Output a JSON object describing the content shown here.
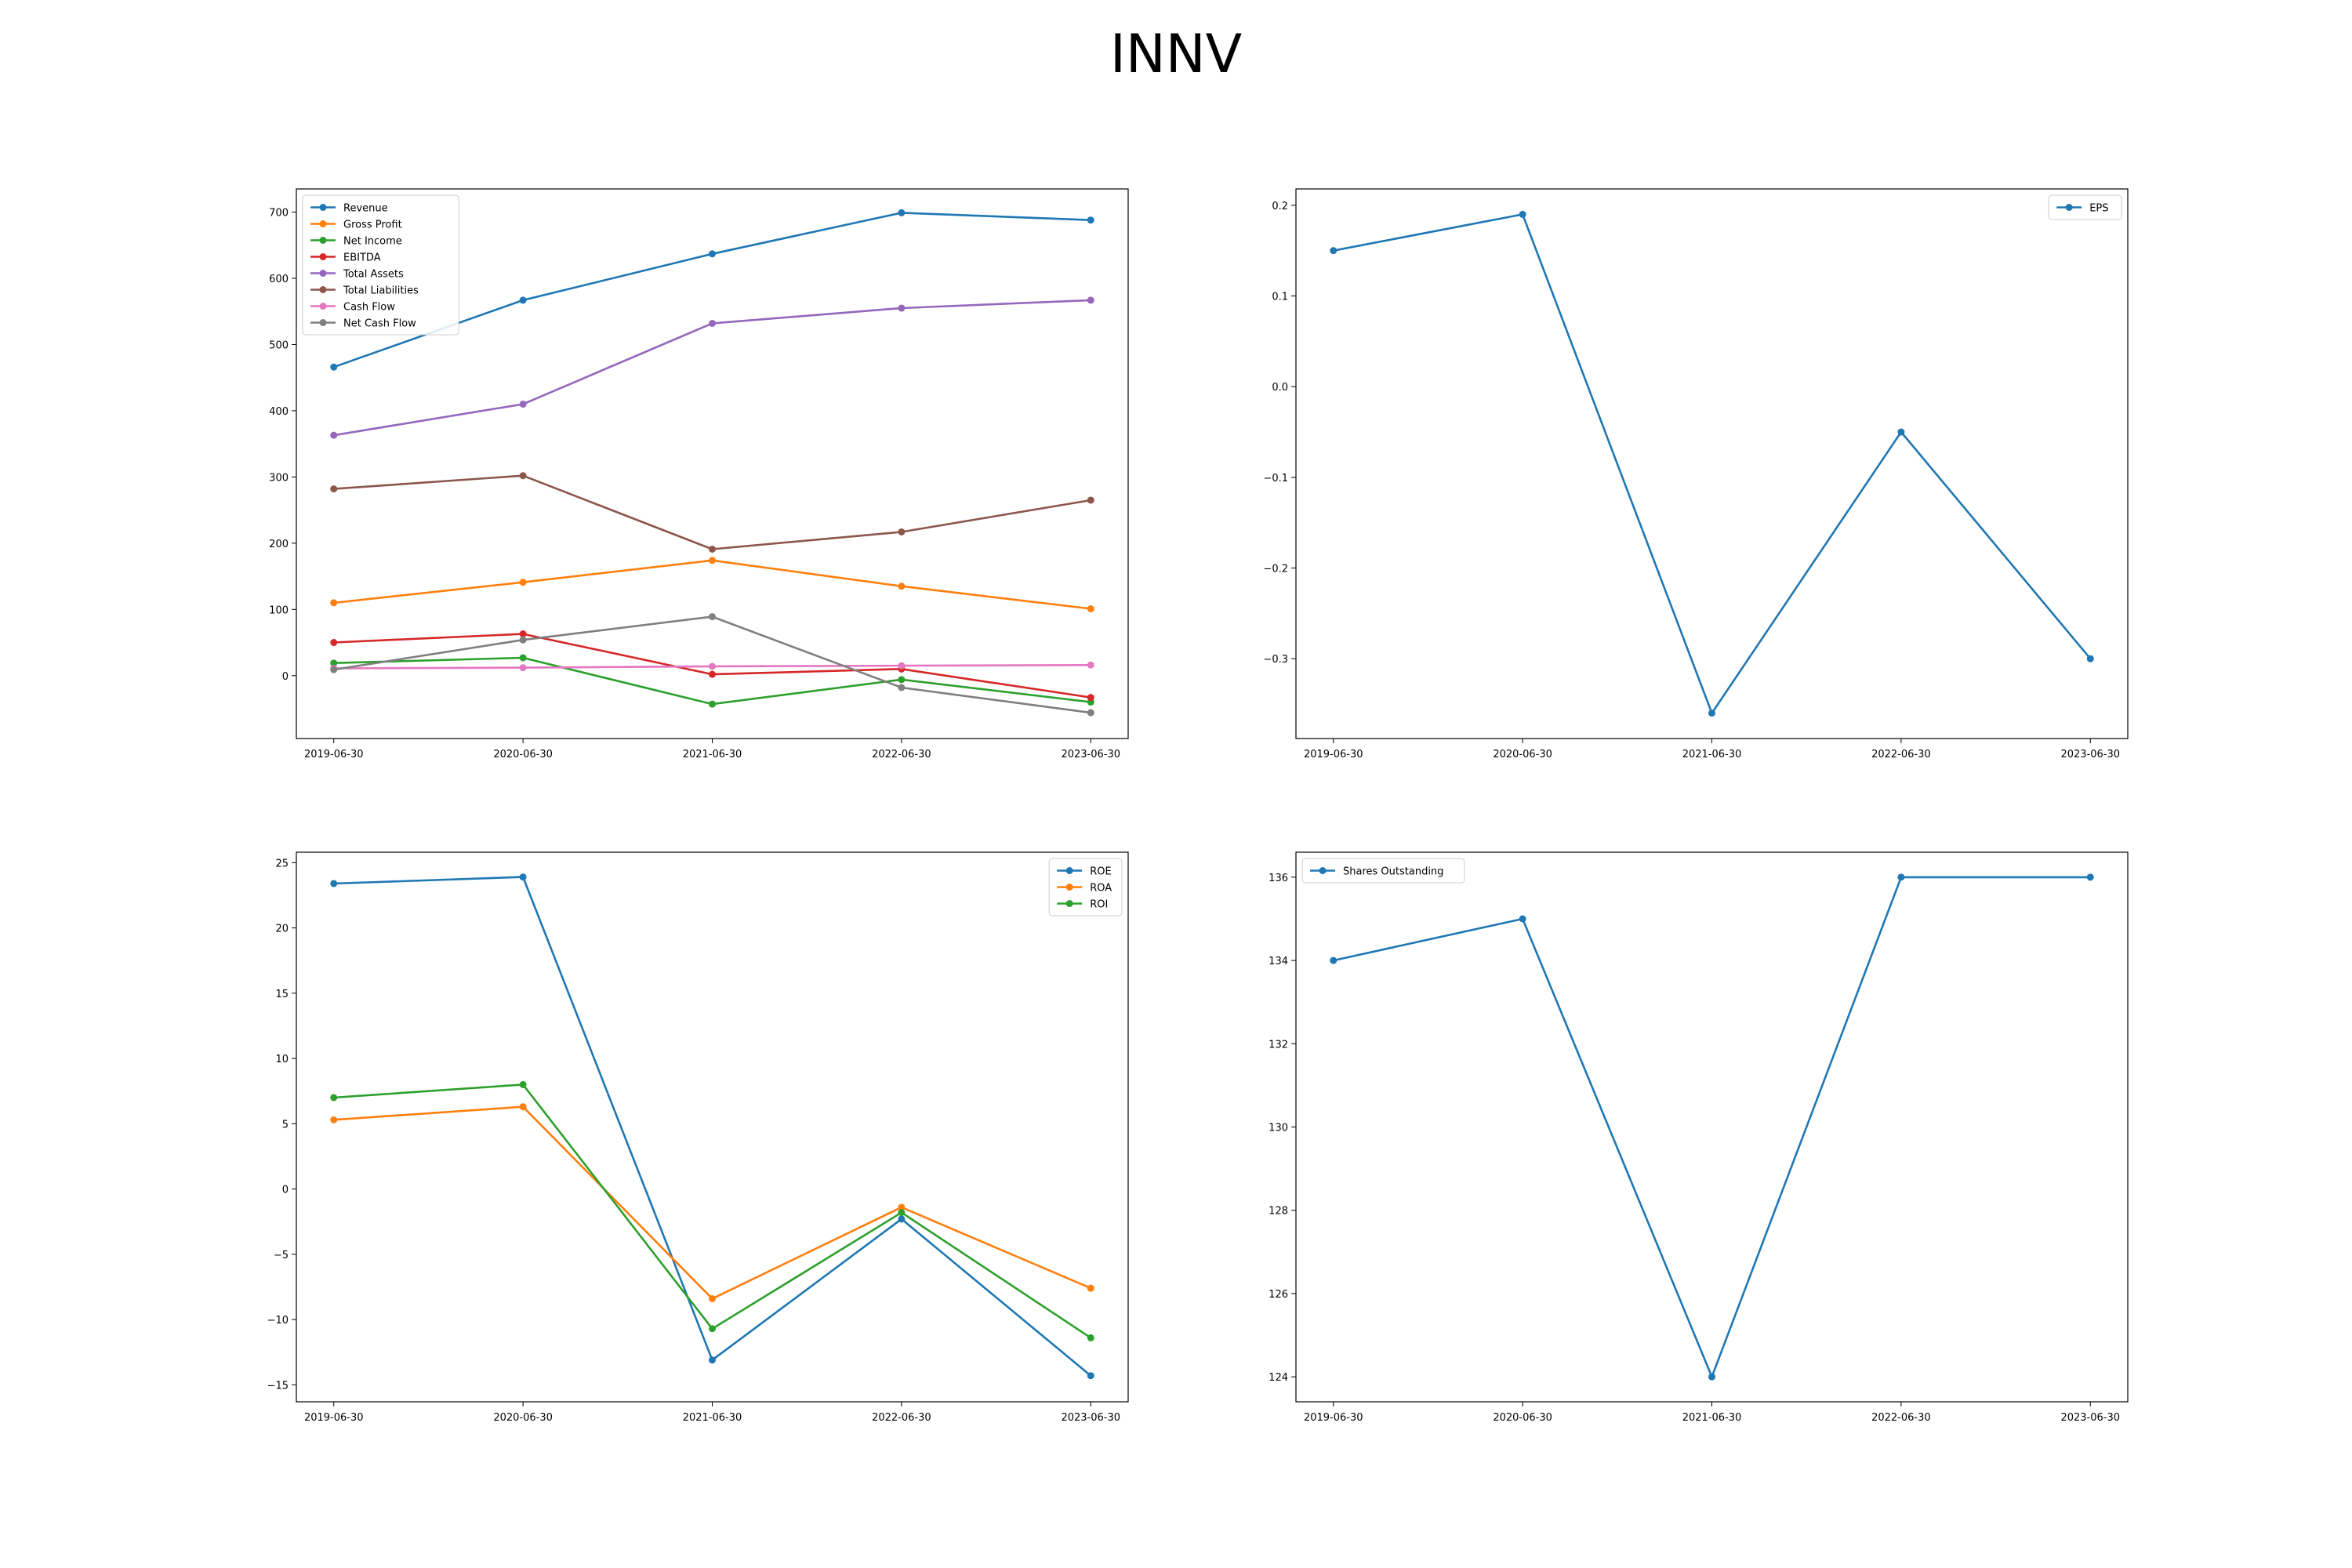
{
  "title": "INNV",
  "chart_data": [
    {
      "id": "financials",
      "type": "line",
      "categories": [
        "2019-06-30",
        "2020-06-30",
        "2021-06-30",
        "2022-06-30",
        "2023-06-30"
      ],
      "ylim": [
        -95,
        735
      ],
      "yticks": [
        0,
        100,
        200,
        300,
        400,
        500,
        600,
        700
      ],
      "legend": "upper-left",
      "grid": false,
      "series": [
        {
          "name": "Revenue",
          "color": "#1f77b4",
          "values": [
            466,
            567,
            637,
            699,
            688
          ]
        },
        {
          "name": "Gross Profit",
          "color": "#ff7f0e",
          "values": [
            110,
            141,
            174,
            135,
            101
          ]
        },
        {
          "name": "Net Income",
          "color": "#2ca02c",
          "values": [
            19,
            27,
            -43,
            -6,
            -40
          ]
        },
        {
          "name": "EBITDA",
          "color": "#d62728",
          "values": [
            50,
            63,
            2,
            10,
            -33
          ]
        },
        {
          "name": "Total Assets",
          "color": "#9467bd",
          "values": [
            363,
            410,
            532,
            555,
            567
          ]
        },
        {
          "name": "Total Liabilities",
          "color": "#8c564b",
          "values": [
            282,
            302,
            191,
            217,
            265
          ]
        },
        {
          "name": "Cash Flow",
          "color": "#e377c2",
          "values": [
            11,
            12,
            14,
            15,
            16
          ]
        },
        {
          "name": "Net Cash Flow",
          "color": "#7f7f7f",
          "values": [
            9,
            54,
            89,
            -18,
            -56
          ]
        }
      ]
    },
    {
      "id": "eps",
      "type": "line",
      "categories": [
        "2019-06-30",
        "2020-06-30",
        "2021-06-30",
        "2022-06-30",
        "2023-06-30"
      ],
      "ylim": [
        -0.388,
        0.218
      ],
      "yticks": [
        -0.3,
        -0.2,
        -0.1,
        0.0,
        0.1,
        0.2
      ],
      "yticklabels": [
        "−0.3",
        "−0.2",
        "−0.1",
        "0.0",
        "0.1",
        "0.2"
      ],
      "legend": "upper-right",
      "grid": false,
      "series": [
        {
          "name": "EPS",
          "color": "#1f77b4",
          "values": [
            0.15,
            0.19,
            -0.36,
            -0.05,
            -0.3
          ]
        }
      ]
    },
    {
      "id": "ratios",
      "type": "line",
      "categories": [
        "2019-06-30",
        "2020-06-30",
        "2021-06-30",
        "2022-06-30",
        "2023-06-30"
      ],
      "ylim": [
        -16.3,
        25.8
      ],
      "yticks": [
        -15,
        -10,
        -5,
        0,
        5,
        10,
        15,
        20,
        25
      ],
      "yticklabels": [
        "−15",
        "−10",
        "−5",
        "0",
        "5",
        "10",
        "15",
        "20",
        "25"
      ],
      "legend": "upper-right",
      "grid": false,
      "series": [
        {
          "name": "ROE",
          "color": "#1f77b4",
          "values": [
            23.4,
            23.9,
            -13.1,
            -2.3,
            -14.3
          ]
        },
        {
          "name": "ROA",
          "color": "#ff7f0e",
          "values": [
            5.3,
            6.3,
            -8.4,
            -1.4,
            -7.6
          ]
        },
        {
          "name": "ROI",
          "color": "#2ca02c",
          "values": [
            7.0,
            8.0,
            -10.7,
            -1.8,
            -11.4
          ]
        }
      ]
    },
    {
      "id": "shares",
      "type": "line",
      "categories": [
        "2019-06-30",
        "2020-06-30",
        "2021-06-30",
        "2022-06-30",
        "2023-06-30"
      ],
      "ylim": [
        123.4,
        136.6
      ],
      "yticks": [
        124,
        126,
        128,
        130,
        132,
        134,
        136
      ],
      "legend": "upper-left",
      "grid": false,
      "series": [
        {
          "name": "Shares Outstanding",
          "color": "#1f77b4",
          "values": [
            134,
            135,
            124,
            136,
            136
          ]
        }
      ]
    }
  ]
}
